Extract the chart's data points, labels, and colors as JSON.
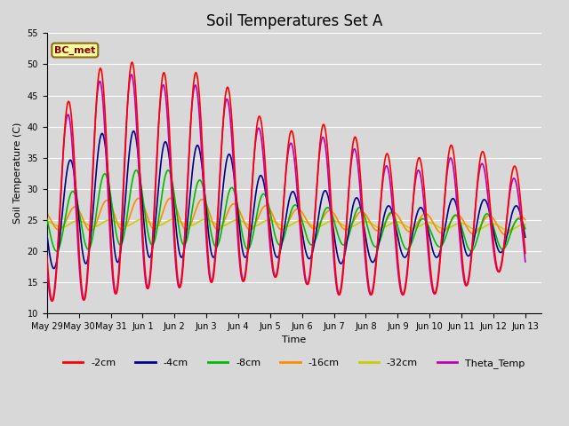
{
  "title": "Soil Temperatures Set A",
  "xlabel": "Time",
  "ylabel": "Soil Temperature (C)",
  "ylim": [
    10,
    55
  ],
  "xlim_start": 0,
  "xlim_end": 15.5,
  "annotation_text": "BC_met",
  "annotation_box_color": "#FFFFA0",
  "annotation_text_color": "#8B0000",
  "annotation_border_color": "#8B6914",
  "background_color": "#D8D8D8",
  "plot_bg_color": "#D8D8D8",
  "grid_color": "#FFFFFF",
  "series": {
    "-2cm": {
      "color": "#FF0000",
      "lw": 1.2
    },
    "-4cm": {
      "color": "#00008B",
      "lw": 1.2
    },
    "-8cm": {
      "color": "#00BB00",
      "lw": 1.2
    },
    "-16cm": {
      "color": "#FF8C00",
      "lw": 1.2
    },
    "-32cm": {
      "color": "#CCCC00",
      "lw": 1.2
    },
    "Theta_Temp": {
      "color": "#BB00BB",
      "lw": 1.2
    }
  },
  "xtick_labels": [
    "May 29",
    "May 30",
    "May 31",
    "Jun 1",
    "Jun 2",
    "Jun 3",
    "Jun 4",
    "Jun 5",
    "Jun 6",
    "Jun 7",
    "Jun 8",
    "Jun 9",
    "Jun 10",
    "Jun 11",
    "Jun 12",
    "Jun 13"
  ],
  "xtick_positions": [
    0,
    1,
    2,
    3,
    4,
    5,
    6,
    7,
    8,
    9,
    10,
    11,
    12,
    13,
    14,
    15
  ],
  "ytick_positions": [
    10,
    15,
    20,
    25,
    30,
    35,
    40,
    45,
    50,
    55
  ],
  "legend_ncol": 6,
  "title_fontsize": 12,
  "tick_fontsize": 7,
  "label_fontsize": 8,
  "legend_fontsize": 8
}
